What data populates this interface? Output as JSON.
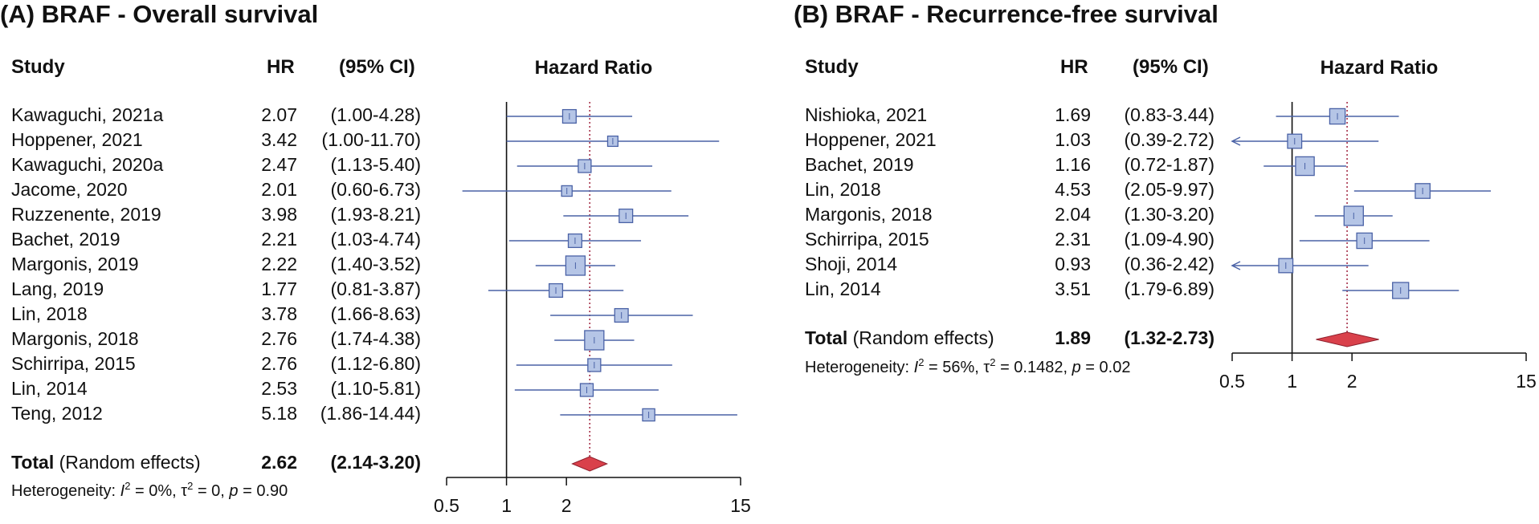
{
  "chart_data": [
    {
      "type": "forest",
      "panel_title": "(A) BRAF - Overall survival",
      "headers": {
        "study": "Study",
        "hr": "HR",
        "ci": "(95% CI)",
        "plot": "Hazard Ratio"
      },
      "x_scale": "log",
      "xlim": [
        0.5,
        15
      ],
      "xticks": [
        "0.5",
        "1",
        "2",
        "15"
      ],
      "null_line": 1,
      "studies": [
        {
          "label": "Kawaguchi, 2021a",
          "hr": 2.07,
          "lower": 1.0,
          "upper": 4.28,
          "hr_text": "2.07",
          "ci_text": "(1.00-4.28)",
          "weight": 0.55
        },
        {
          "label": "Hoppener, 2021",
          "hr": 3.42,
          "lower": 1.0,
          "upper": 11.7,
          "hr_text": "3.42",
          "ci_text": "(1.00-11.70)",
          "weight": 0.3
        },
        {
          "label": "Kawaguchi, 2020a",
          "hr": 2.47,
          "lower": 1.13,
          "upper": 5.4,
          "hr_text": "2.47",
          "ci_text": "(1.13-5.40)",
          "weight": 0.5
        },
        {
          "label": "Jacome, 2020",
          "hr": 2.01,
          "lower": 0.6,
          "upper": 6.73,
          "hr_text": "2.01",
          "ci_text": "(0.60-6.73)",
          "weight": 0.32
        },
        {
          "label": "Ruzzenente, 2019",
          "hr": 3.98,
          "lower": 1.93,
          "upper": 8.21,
          "hr_text": "3.98",
          "ci_text": "(1.93-8.21)",
          "weight": 0.55
        },
        {
          "label": "Bachet, 2019",
          "hr": 2.21,
          "lower": 1.03,
          "upper": 4.74,
          "hr_text": "2.21",
          "ci_text": "(1.03-4.74)",
          "weight": 0.55
        },
        {
          "label": "Margonis, 2019",
          "hr": 2.22,
          "lower": 1.4,
          "upper": 3.52,
          "hr_text": "2.22",
          "ci_text": "(1.40-3.52)",
          "weight": 1.0
        },
        {
          "label": "Lang, 2019",
          "hr": 1.77,
          "lower": 0.81,
          "upper": 3.87,
          "hr_text": "1.77",
          "ci_text": "(0.81-3.87)",
          "weight": 0.55
        },
        {
          "label": "Lin, 2018",
          "hr": 3.78,
          "lower": 1.66,
          "upper": 8.63,
          "hr_text": "3.78",
          "ci_text": "(1.66-8.63)",
          "weight": 0.55
        },
        {
          "label": "Margonis, 2018",
          "hr": 2.76,
          "lower": 1.74,
          "upper": 4.38,
          "hr_text": "2.76",
          "ci_text": "(1.74-4.38)",
          "weight": 1.0
        },
        {
          "label": "Schirripa, 2015",
          "hr": 2.76,
          "lower": 1.12,
          "upper": 6.8,
          "hr_text": "2.76",
          "ci_text": "(1.12-6.80)",
          "weight": 0.5
        },
        {
          "label": "Lin, 2014",
          "hr": 2.53,
          "lower": 1.1,
          "upper": 5.81,
          "hr_text": "2.53",
          "ci_text": "(1.10-5.81)",
          "weight": 0.5
        },
        {
          "label": "Teng, 2012",
          "hr": 5.18,
          "lower": 1.86,
          "upper": 14.44,
          "hr_text": "5.18",
          "ci_text": "(1.86-14.44)",
          "weight": 0.45
        }
      ],
      "total": {
        "label_bold": "Total",
        "label_rest": "(Random effects)",
        "hr": 2.62,
        "lower": 2.14,
        "upper": 3.2,
        "hr_text": "2.62",
        "ci_text": "(2.14-3.20)"
      },
      "heterogeneity": {
        "prefix": "Heterogeneity: ",
        "i2_symbol": "I",
        "i2_exp": "2",
        "i2_rest": " = 0%, ",
        "tau_symbol": "τ",
        "tau_exp": "2",
        "tau_rest": " = 0, ",
        "p_symbol": "p",
        "p_rest": " = 0.90"
      },
      "colors": {
        "box_fill": "#b5c5e6",
        "box_stroke": "#4a62a6",
        "line": "#4a62a6",
        "diamond": "#d9414b",
        "ref": "#a0243e"
      }
    },
    {
      "type": "forest",
      "panel_title": "(B) BRAF - Recurrence-free survival",
      "headers": {
        "study": "Study",
        "hr": "HR",
        "ci": "(95% CI)",
        "plot": "Hazard Ratio"
      },
      "x_scale": "log",
      "xlim": [
        0.5,
        15
      ],
      "xticks": [
        "0.5",
        "1",
        "2",
        "15"
      ],
      "null_line": 1,
      "studies": [
        {
          "label": "Nishioka, 2021",
          "hr": 1.69,
          "lower": 0.83,
          "upper": 3.44,
          "hr_text": "1.69",
          "ci_text": "(0.83-3.44)",
          "weight": 0.7
        },
        {
          "label": "Hoppener, 2021",
          "hr": 1.03,
          "lower": 0.39,
          "upper": 2.72,
          "hr_text": "1.03",
          "ci_text": "(0.39-2.72)",
          "weight": 0.6
        },
        {
          "label": "Bachet, 2019",
          "hr": 1.16,
          "lower": 0.72,
          "upper": 1.87,
          "hr_text": "1.16",
          "ci_text": "(0.72-1.87)",
          "weight": 0.95
        },
        {
          "label": "Lin, 2018",
          "hr": 4.53,
          "lower": 2.05,
          "upper": 9.97,
          "hr_text": "4.53",
          "ci_text": "(2.05-9.97)",
          "weight": 0.65
        },
        {
          "label": "Margonis, 2018",
          "hr": 2.04,
          "lower": 1.3,
          "upper": 3.2,
          "hr_text": "2.04",
          "ci_text": "(1.30-3.20)",
          "weight": 1.0
        },
        {
          "label": "Schirripa, 2015",
          "hr": 2.31,
          "lower": 1.09,
          "upper": 4.9,
          "hr_text": "2.31",
          "ci_text": "(1.09-4.90)",
          "weight": 0.7
        },
        {
          "label": "Shoji, 2014",
          "hr": 0.93,
          "lower": 0.36,
          "upper": 2.42,
          "hr_text": "0.93",
          "ci_text": "(0.36-2.42)",
          "weight": 0.6
        },
        {
          "label": "Lin, 2014",
          "hr": 3.51,
          "lower": 1.79,
          "upper": 6.89,
          "hr_text": "3.51",
          "ci_text": "(1.79-6.89)",
          "weight": 0.75
        }
      ],
      "total": {
        "label_bold": "Total",
        "label_rest": "(Random effects)",
        "hr": 1.89,
        "lower": 1.32,
        "upper": 2.73,
        "hr_text": "1.89",
        "ci_text": "(1.32-2.73)"
      },
      "heterogeneity": {
        "prefix": "Heterogeneity: ",
        "i2_symbol": "I",
        "i2_exp": "2",
        "i2_rest": " = 56%, ",
        "tau_symbol": "τ",
        "tau_exp": "2",
        "tau_rest": " = 0.1482, ",
        "p_symbol": "p",
        "p_rest": " = 0.02"
      },
      "colors": {
        "box_fill": "#b5c5e6",
        "box_stroke": "#4a62a6",
        "line": "#4a62a6",
        "diamond": "#d9414b",
        "ref": "#a0243e"
      }
    }
  ]
}
